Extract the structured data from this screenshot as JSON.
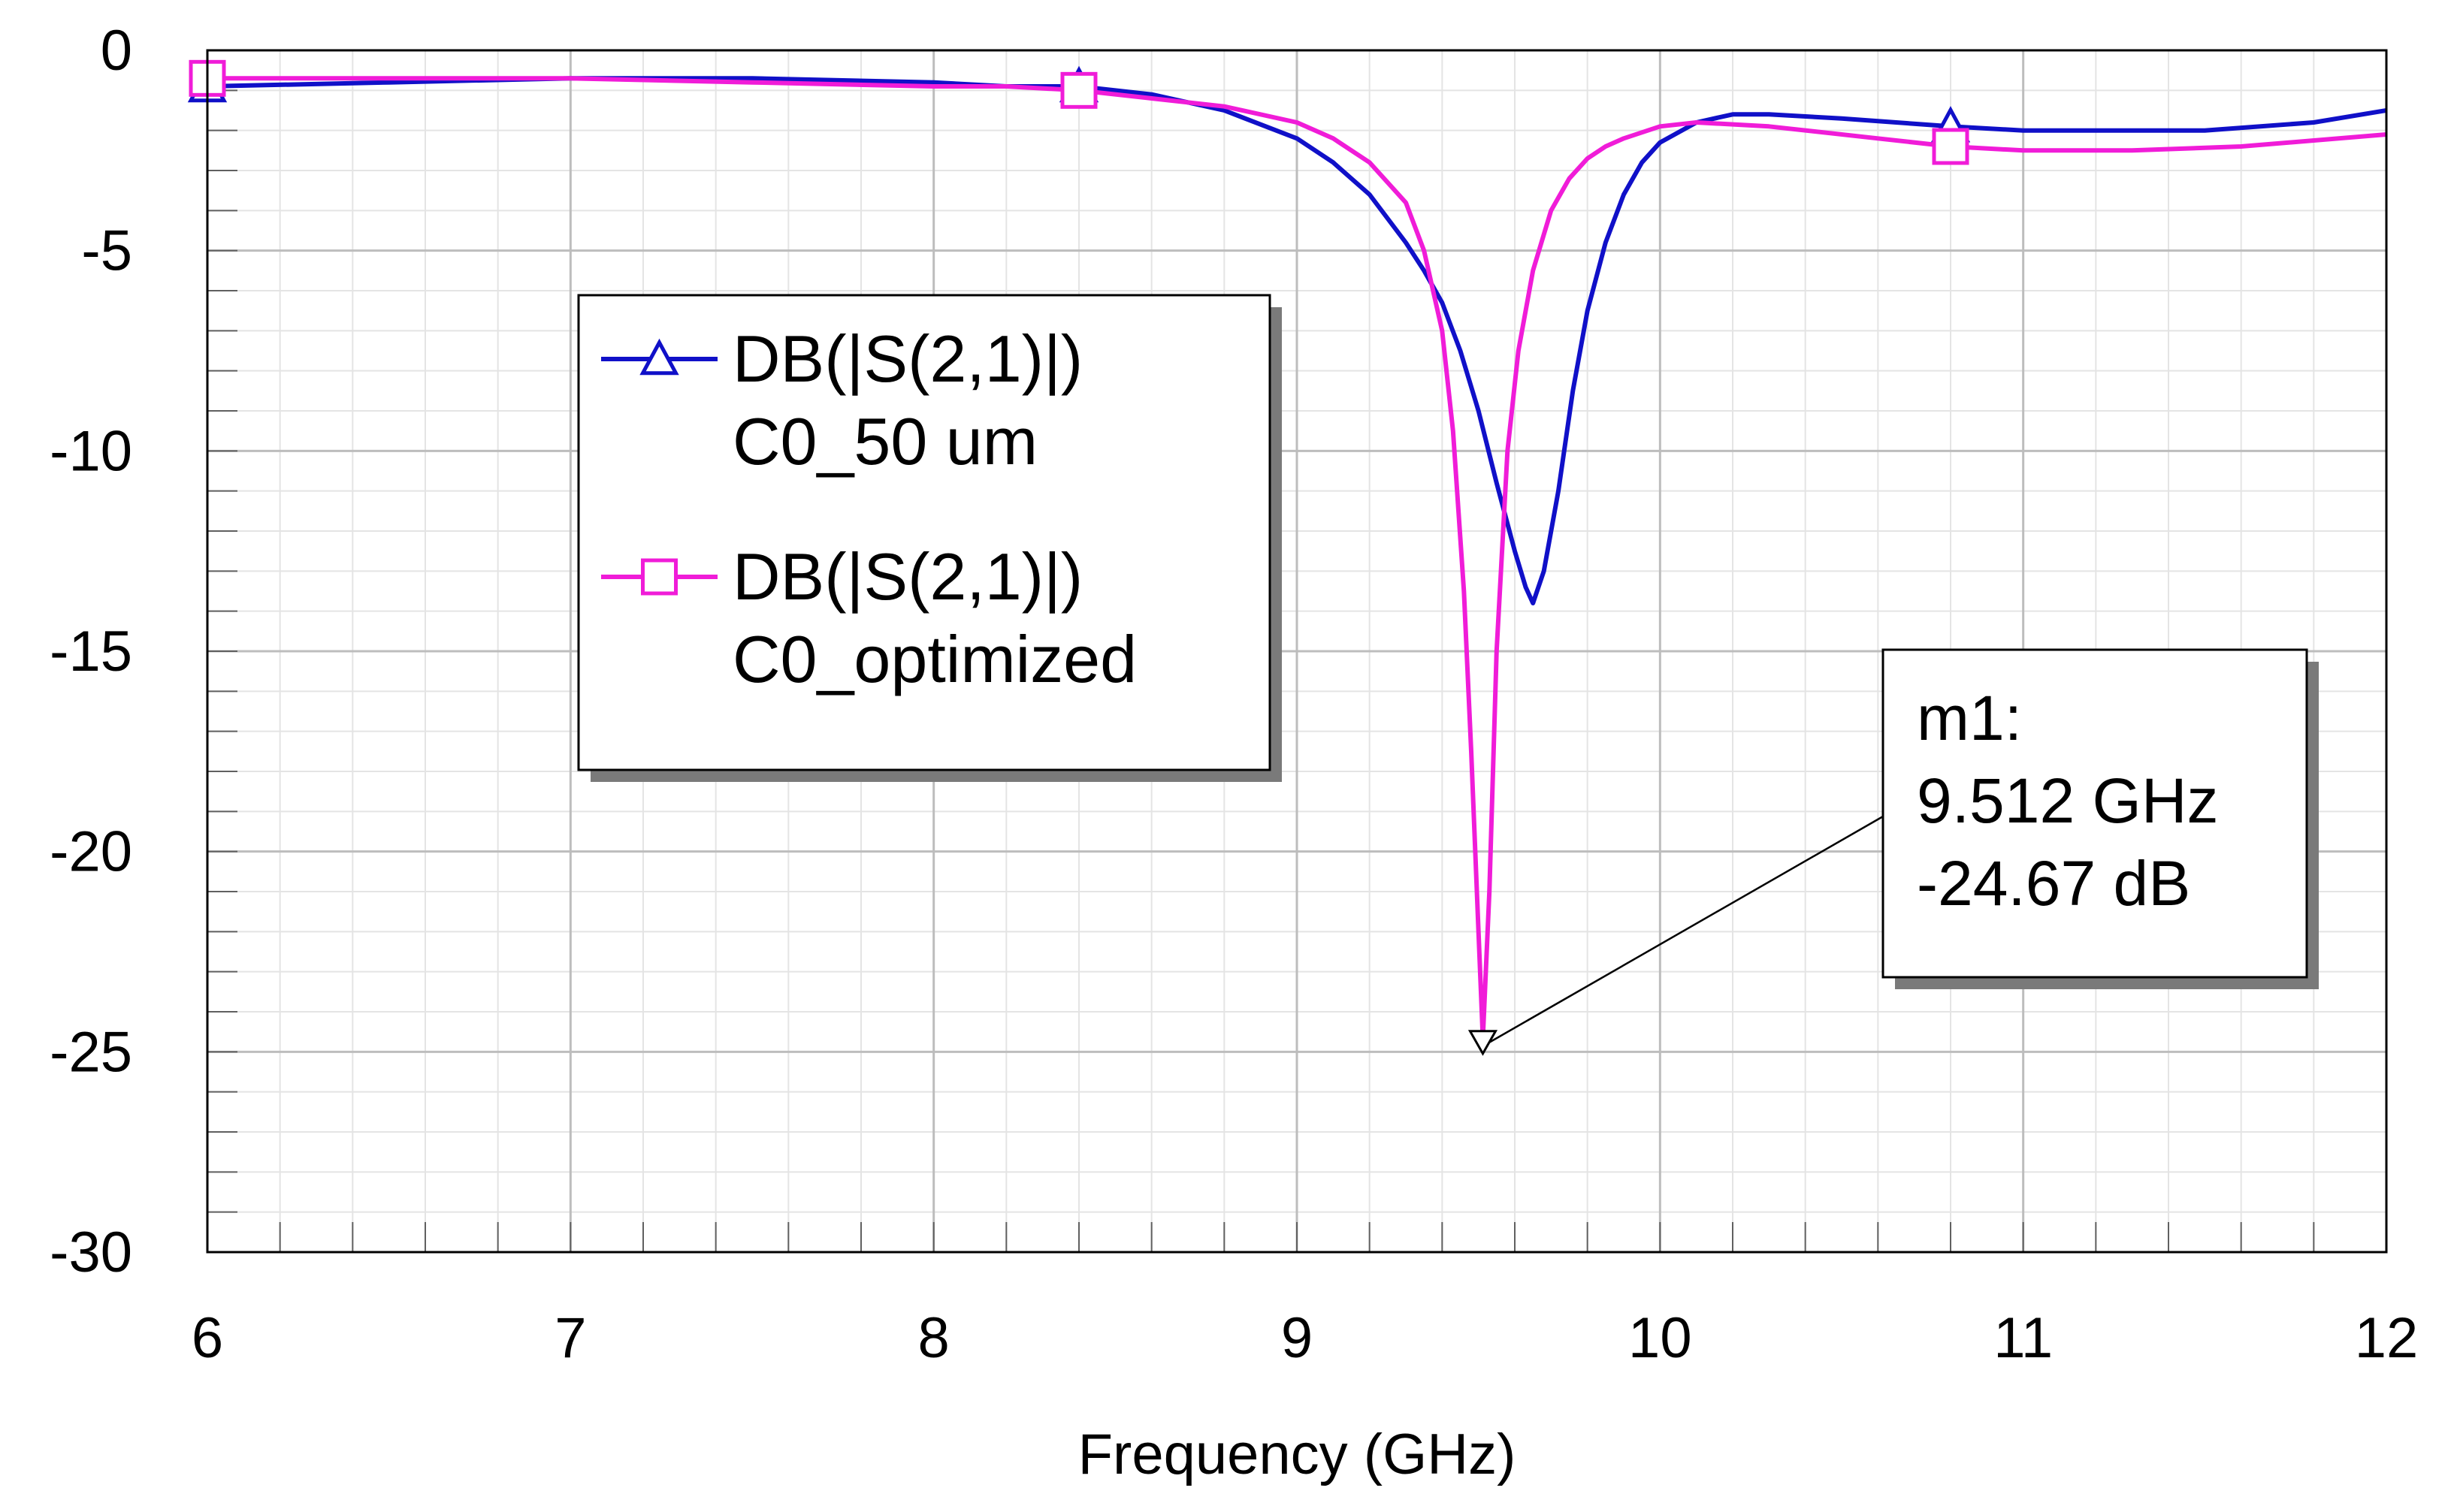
{
  "chart_data": {
    "type": "line",
    "title": "",
    "xlabel": "Frequency (GHz)",
    "ylabel": "",
    "xlim": [
      6,
      12
    ],
    "ylim": [
      -30,
      0
    ],
    "x_ticks": [
      6,
      7,
      8,
      9,
      10,
      11,
      12
    ],
    "x_tick_labels": [
      "6",
      "7",
      "8",
      "9",
      "10",
      "11",
      "12"
    ],
    "y_ticks": [
      0,
      -5,
      -10,
      -15,
      -20,
      -25,
      -30
    ],
    "y_tick_labels": [
      "0",
      "-5",
      "-10",
      "-15",
      "-20",
      "-25",
      "-30"
    ],
    "grid": true,
    "legend_position": "upper-left",
    "series": [
      {
        "name": "DB(|S(2,1)|) C0_50 um",
        "legend_line1": "DB(|S(2,1)|)",
        "legend_line2": "C0_50 um",
        "color": "#1010c8",
        "marker": "triangle",
        "marker_x": [
          6.0,
          8.4,
          10.8
        ],
        "x": [
          6.0,
          6.5,
          7.0,
          7.5,
          8.0,
          8.2,
          8.4,
          8.6,
          8.8,
          9.0,
          9.1,
          9.2,
          9.3,
          9.35,
          9.4,
          9.45,
          9.5,
          9.55,
          9.6,
          9.63,
          9.65,
          9.68,
          9.72,
          9.76,
          9.8,
          9.85,
          9.9,
          9.95,
          10.0,
          10.1,
          10.2,
          10.3,
          10.5,
          10.8,
          11.0,
          11.2,
          11.5,
          11.8,
          12.0
        ],
        "y": [
          -0.9,
          -0.8,
          -0.7,
          -0.7,
          -0.8,
          -0.9,
          -0.9,
          -1.1,
          -1.5,
          -2.2,
          -2.8,
          -3.6,
          -4.8,
          -5.5,
          -6.3,
          -7.5,
          -9.0,
          -10.8,
          -12.5,
          -13.4,
          -13.8,
          -13.0,
          -11.0,
          -8.5,
          -6.5,
          -4.8,
          -3.6,
          -2.8,
          -2.3,
          -1.8,
          -1.6,
          -1.6,
          -1.7,
          -1.9,
          -2.0,
          -2.0,
          -2.0,
          -1.8,
          -1.5
        ]
      },
      {
        "name": "DB(|S(2,1)|) C0_optimized",
        "legend_line1": "DB(|S(2,1)|)",
        "legend_line2": "C0_optimized",
        "color": "#f01cd8",
        "marker": "square",
        "marker_x": [
          6.0,
          8.4,
          10.8
        ],
        "x": [
          6.0,
          6.5,
          7.0,
          7.5,
          8.0,
          8.2,
          8.4,
          8.6,
          8.8,
          9.0,
          9.1,
          9.2,
          9.3,
          9.35,
          9.4,
          9.43,
          9.46,
          9.48,
          9.5,
          9.512,
          9.53,
          9.55,
          9.58,
          9.61,
          9.65,
          9.7,
          9.75,
          9.8,
          9.85,
          9.9,
          10.0,
          10.1,
          10.3,
          10.6,
          10.8,
          11.0,
          11.3,
          11.6,
          12.0
        ],
        "y": [
          -0.7,
          -0.7,
          -0.7,
          -0.8,
          -0.9,
          -0.9,
          -1.0,
          -1.2,
          -1.4,
          -1.8,
          -2.2,
          -2.8,
          -3.8,
          -5.0,
          -7.0,
          -9.5,
          -13.5,
          -17.5,
          -22.0,
          -24.67,
          -21.0,
          -15.0,
          -10.0,
          -7.5,
          -5.5,
          -4.0,
          -3.2,
          -2.7,
          -2.4,
          -2.2,
          -1.9,
          -1.8,
          -1.9,
          -2.2,
          -2.4,
          -2.5,
          -2.5,
          -2.4,
          -2.1
        ]
      }
    ],
    "annotations": [
      {
        "label": "m1:",
        "line2": "9.512 GHz",
        "line3": "-24.67 dB",
        "x": 9.512,
        "y": -24.67
      }
    ]
  }
}
